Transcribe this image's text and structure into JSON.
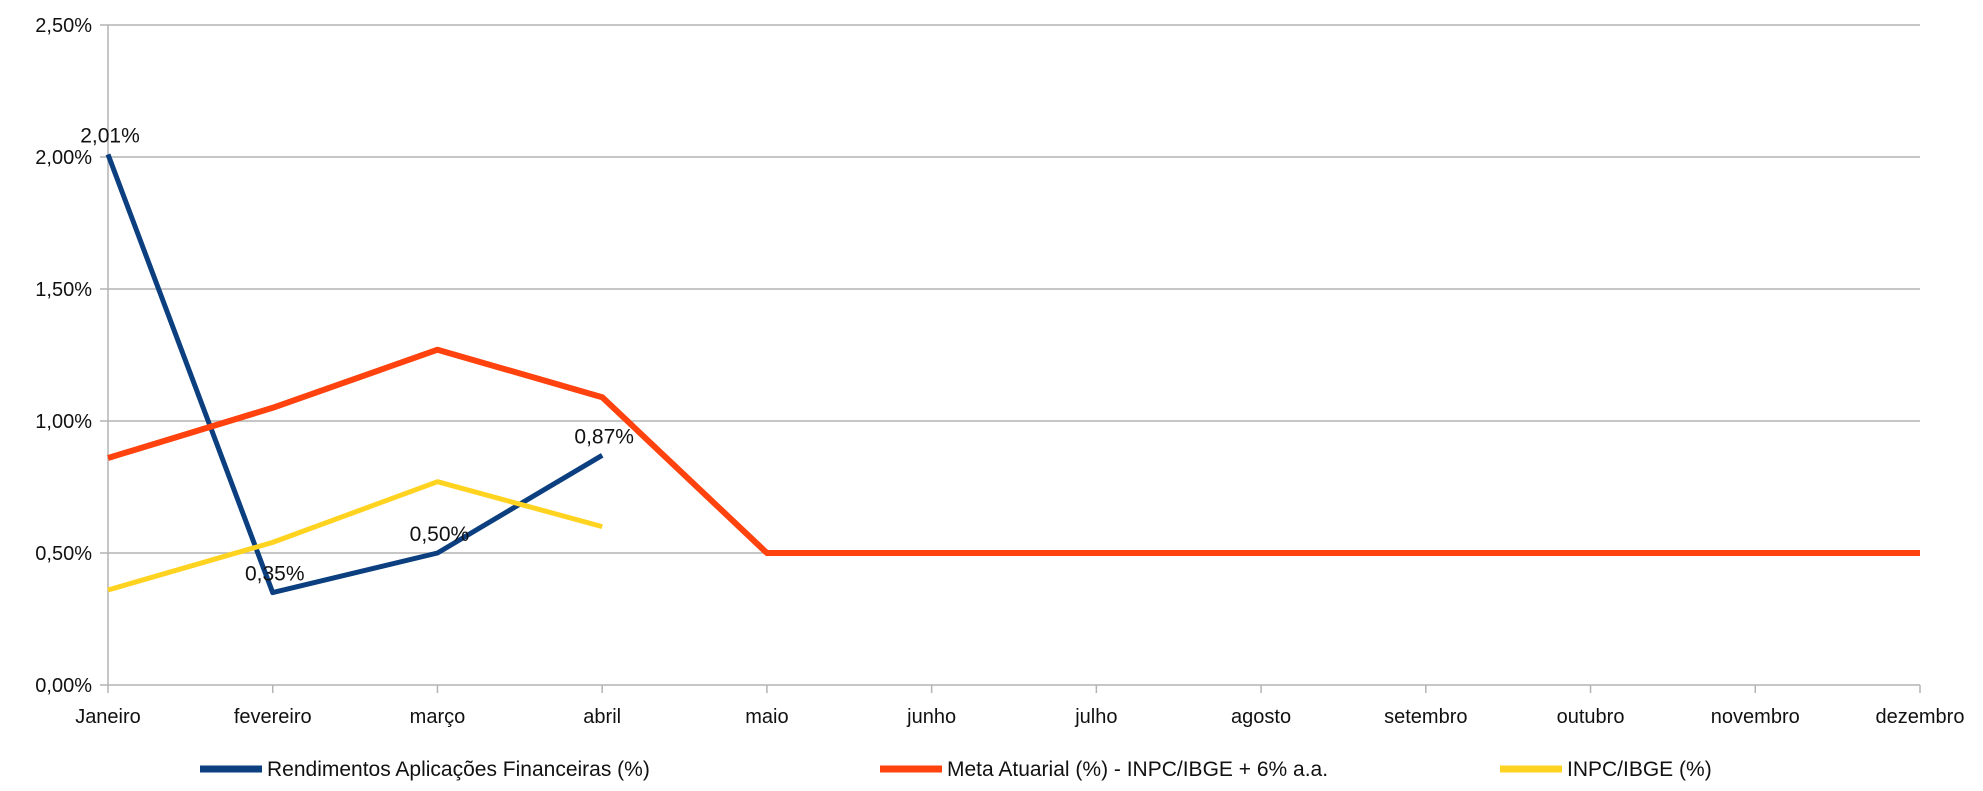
{
  "chart_data": {
    "type": "line",
    "categories": [
      "Janeiro",
      "fevereiro",
      "março",
      "abril",
      "maio",
      "junho",
      "julho",
      "agosto",
      "setembro",
      "outubro",
      "novembro",
      "dezembro"
    ],
    "y_ticks": [
      "0,00%",
      "0,50%",
      "1,00%",
      "1,50%",
      "2,00%",
      "2,50%"
    ],
    "ylim": [
      0,
      2.5
    ],
    "grid": true,
    "legend_position": "bottom",
    "series": [
      {
        "name": "Rendimentos Aplicações Financeiras (%)",
        "color": "#0b3f7f",
        "values": [
          2.01,
          0.35,
          0.5,
          0.87,
          null,
          null,
          null,
          null,
          null,
          null,
          null,
          null
        ],
        "data_labels": [
          "2,01%",
          "0,35%",
          "0,50%",
          "0,87%"
        ]
      },
      {
        "name": "Meta Atuarial (%) - INPC/IBGE + 6% a.a.",
        "color": "#ff420e",
        "values": [
          0.86,
          1.05,
          1.27,
          1.09,
          0.5,
          0.5,
          0.5,
          0.5,
          0.5,
          0.5,
          0.5,
          0.5
        ]
      },
      {
        "name": "INPC/IBGE (%)",
        "color": "#ffd320",
        "values": [
          0.36,
          0.54,
          0.77,
          0.6,
          null,
          null,
          null,
          null,
          null,
          null,
          null,
          null
        ]
      }
    ]
  }
}
